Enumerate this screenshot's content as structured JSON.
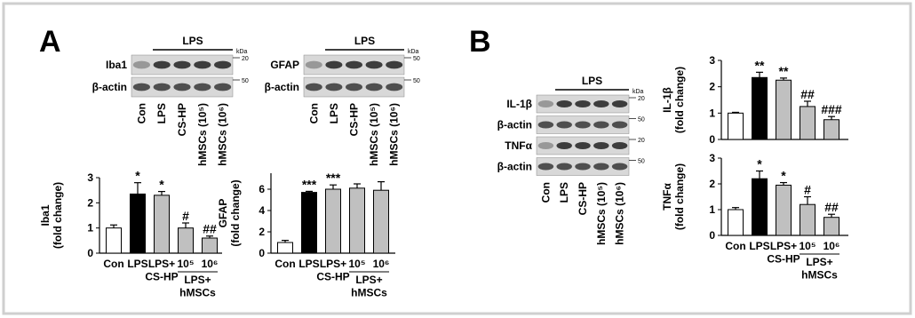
{
  "figure": {
    "panels": [
      "A",
      "B"
    ],
    "blots": [
      {
        "header": "LPS",
        "rows": [
          "Iba1",
          "β-actin"
        ],
        "markers": [
          "kDa",
          "20",
          "50"
        ],
        "lanes": [
          "Con",
          "LPS",
          "CS-HP",
          "hMSCs (10⁵)",
          "hMSCs (10⁶)"
        ]
      },
      {
        "header": "LPS",
        "rows": [
          "GFAP",
          "β-actin"
        ],
        "markers": [
          "kDa",
          "50",
          "50"
        ],
        "lanes": [
          "Con",
          "LPS",
          "CS-HP",
          "hMSCs (10⁵)",
          "hMSCs (10⁶)"
        ]
      },
      {
        "header": "LPS",
        "rows": [
          "IL-1β",
          "β-actin",
          "TNFα",
          "β-actin"
        ],
        "markers": [
          "kDa",
          "20",
          "50",
          "20",
          "50"
        ],
        "lanes": [
          "Con",
          "LPS",
          "CS-HP",
          "hMSCs (10⁵)",
          "hMSCs (10⁶)"
        ]
      }
    ]
  },
  "chart_data": [
    {
      "type": "bar",
      "ylabel": "Iba1\n(fold change)",
      "categories": [
        "Con",
        "LPS",
        "LPS+\nCS-HP",
        "10⁵",
        "10⁶"
      ],
      "group_label": "LPS+\nhMSCs",
      "values": [
        1.0,
        2.35,
        2.3,
        1.0,
        0.6
      ],
      "errors": [
        0.12,
        0.45,
        0.15,
        0.2,
        0.08
      ],
      "annotations": [
        null,
        "*",
        "*",
        "#",
        "##"
      ],
      "colors": [
        "#ffffff",
        "#000000",
        "#c0c0c0",
        "#c0c0c0",
        "#c0c0c0"
      ],
      "ylim": [
        0,
        3
      ],
      "yticks": [
        0,
        1,
        2,
        3
      ]
    },
    {
      "type": "bar",
      "ylabel": "GFAP\n(fold change)",
      "categories": [
        "Con",
        "LPS",
        "LPS+\nCS-HP",
        "10⁵",
        "10⁶"
      ],
      "group_label": "LPS+\nhMSCs",
      "values": [
        1.0,
        5.7,
        6.0,
        6.1,
        5.9
      ],
      "errors": [
        0.2,
        0.1,
        0.4,
        0.4,
        0.8
      ],
      "annotations": [
        null,
        "***",
        "***",
        null,
        null
      ],
      "colors": [
        "#ffffff",
        "#000000",
        "#c0c0c0",
        "#c0c0c0",
        "#c0c0c0"
      ],
      "ylim": [
        0,
        7.5
      ],
      "yticks": [
        0,
        2,
        4,
        6
      ]
    },
    {
      "type": "bar",
      "ylabel": "IL-1β\n(fold change)",
      "values": [
        1.0,
        2.35,
        2.25,
        1.25,
        0.75
      ],
      "errors": [
        0.03,
        0.2,
        0.08,
        0.2,
        0.12
      ],
      "annotations": [
        null,
        "**",
        "**",
        "##",
        "###"
      ],
      "colors": [
        "#ffffff",
        "#000000",
        "#c0c0c0",
        "#c0c0c0",
        "#c0c0c0"
      ],
      "ylim": [
        0,
        3
      ],
      "yticks": [
        0,
        1,
        2,
        3
      ]
    },
    {
      "type": "bar",
      "ylabel": "TNFα\n(fold change)",
      "categories": [
        "Con",
        "LPS",
        "LPS+\nCS-HP",
        "10⁵",
        "10⁶"
      ],
      "group_label": "LPS+\nhMSCs",
      "values": [
        1.0,
        2.2,
        1.95,
        1.2,
        0.7
      ],
      "errors": [
        0.08,
        0.3,
        0.1,
        0.3,
        0.12
      ],
      "annotations": [
        null,
        "*",
        "*",
        "#",
        "##"
      ],
      "colors": [
        "#ffffff",
        "#000000",
        "#c0c0c0",
        "#c0c0c0",
        "#c0c0c0"
      ],
      "ylim": [
        0,
        3
      ],
      "yticks": [
        0,
        1,
        2,
        3
      ]
    }
  ]
}
